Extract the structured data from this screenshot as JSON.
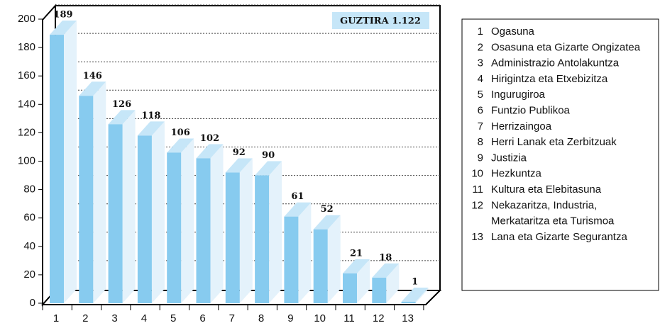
{
  "chart_data": {
    "type": "bar",
    "categories": [
      "1",
      "2",
      "3",
      "4",
      "5",
      "6",
      "7",
      "8",
      "9",
      "10",
      "11",
      "12",
      "13"
    ],
    "values": [
      189,
      146,
      126,
      118,
      106,
      102,
      92,
      90,
      61,
      52,
      21,
      18,
      1
    ],
    "color": "#87cbef",
    "ylim": [
      0,
      200
    ],
    "yticks": [
      0,
      20,
      40,
      60,
      80,
      100,
      120,
      140,
      160,
      180,
      200
    ],
    "grid": true,
    "annotation": "GUZTIRA 1.122",
    "legend": [
      [
        "Ogasuna"
      ],
      [
        "Osasuna eta Gizarte Ongizatea"
      ],
      [
        "Administrazio Antolakuntza"
      ],
      [
        "Hirigintza eta Etxebizitza"
      ],
      [
        "Ingurugiroa"
      ],
      [
        "Funtzio Publikoa"
      ],
      [
        "Herrizaingoa"
      ],
      [
        "Herri Lanak eta Zerbitzuak"
      ],
      [
        "Justizia"
      ],
      [
        "Hezkuntza"
      ],
      [
        "Kultura eta Elebitasuna"
      ],
      [
        "Nekazaritza, Industria,",
        "Merkataritza eta Turismoa"
      ],
      [
        "Lana eta Gizarte Segurantza"
      ]
    ]
  }
}
